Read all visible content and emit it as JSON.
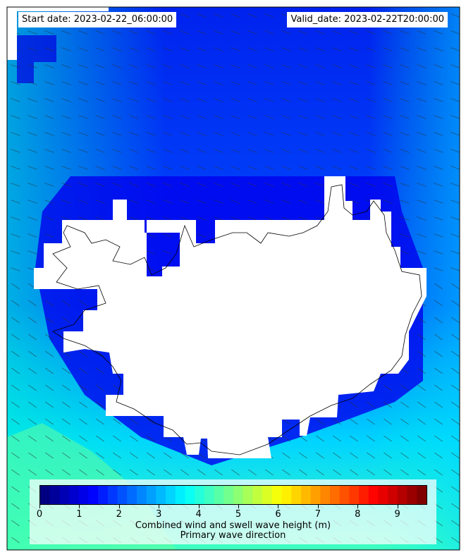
{
  "header": {
    "start_date": "Start date: 2023-02-22_06:00:00",
    "valid_date": "Valid_date: 2023-02-22T20:00:00"
  },
  "colorbar": {
    "label": "Combined wind and swell wave height (m)",
    "sublabel": "Primary wave direction",
    "ticks": [
      "0",
      "1",
      "2",
      "3",
      "4",
      "5",
      "6",
      "7",
      "8",
      "9"
    ],
    "range": [
      0,
      9.75
    ],
    "colormap": "jet"
  },
  "colors": {
    "land": "#ffffff",
    "coastline": "#000000",
    "arrows": "#333333"
  }
}
